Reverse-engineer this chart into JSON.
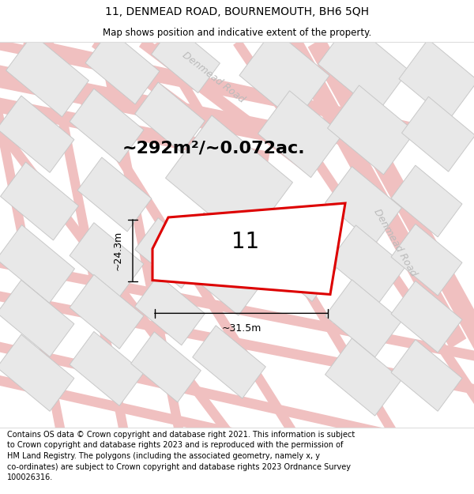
{
  "title": "11, DENMEAD ROAD, BOURNEMOUTH, BH6 5QH",
  "subtitle": "Map shows position and indicative extent of the property.",
  "area_text": "~292m²/~0.072ac.",
  "plot_number": "11",
  "width_label": "~31.5m",
  "height_label": "~24.3m",
  "footer_lines": [
    "Contains OS data © Crown copyright and database right 2021. This information is subject",
    "to Crown copyright and database rights 2023 and is reproduced with the permission of",
    "HM Land Registry. The polygons (including the associated geometry, namely x, y",
    "co-ordinates) are subject to Crown copyright and database rights 2023 Ordnance Survey",
    "100026316."
  ],
  "map_bg": "#ffffff",
  "road_color": "#f0c0c0",
  "block_fill": "#e8e8e8",
  "block_edge": "#c8c8c8",
  "plot_edge_color": "#dd0000",
  "plot_fill": "#ffffff",
  "road_label_color": "#bbbbbb",
  "road_label_top": "Denmead Road",
  "road_label_right": "Denmead Road",
  "title_fontsize": 10,
  "subtitle_fontsize": 8.5,
  "area_fontsize": 16,
  "dim_fontsize": 9,
  "plot_label_fontsize": 20,
  "road_label_fontsize": 9,
  "footer_fontsize": 7
}
